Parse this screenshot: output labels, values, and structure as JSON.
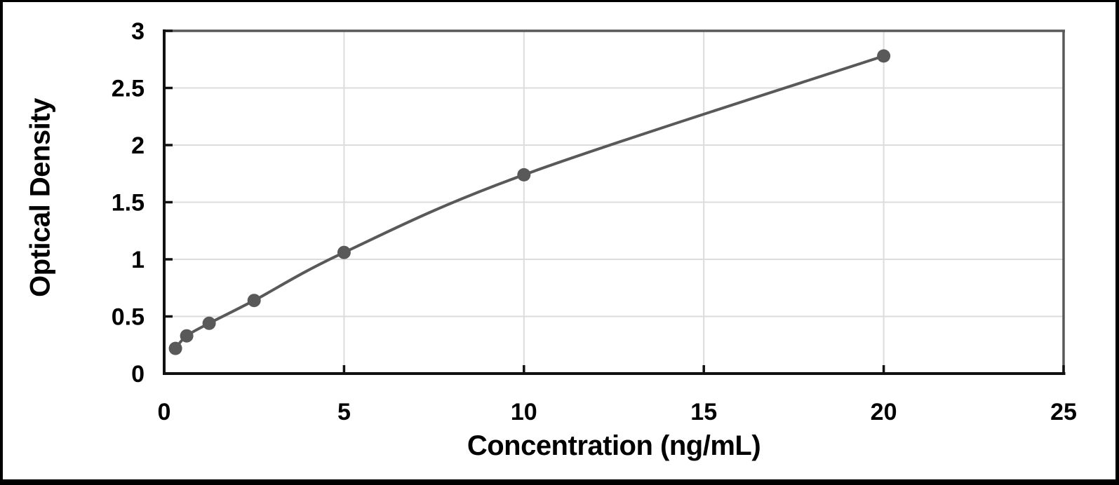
{
  "chart_data": {
    "type": "scatter",
    "subtype": "scatter-with-smooth-line",
    "title": "",
    "xlabel": "Concentration (ng/mL)",
    "ylabel": "Optical Density",
    "x": [
      0.313,
      0.625,
      1.25,
      2.5,
      5,
      10,
      20
    ],
    "y": [
      0.22,
      0.33,
      0.44,
      0.64,
      1.06,
      1.74,
      2.78
    ],
    "xlim": [
      0,
      25
    ],
    "ylim": [
      0,
      3
    ],
    "x_ticks": [
      0,
      5,
      10,
      15,
      20,
      25
    ],
    "y_ticks": [
      0,
      0.5,
      1,
      1.5,
      2,
      2.5,
      3
    ],
    "grid": true,
    "legend": false,
    "colors": {
      "line": "#595959",
      "marker": "#595959",
      "gridline": "#dcdcdc",
      "axis": "#111111",
      "plot_border": "#595959",
      "tick_text": "#000000",
      "title_text": "#000000",
      "frame": "#000000",
      "background": "#ffffff"
    }
  }
}
